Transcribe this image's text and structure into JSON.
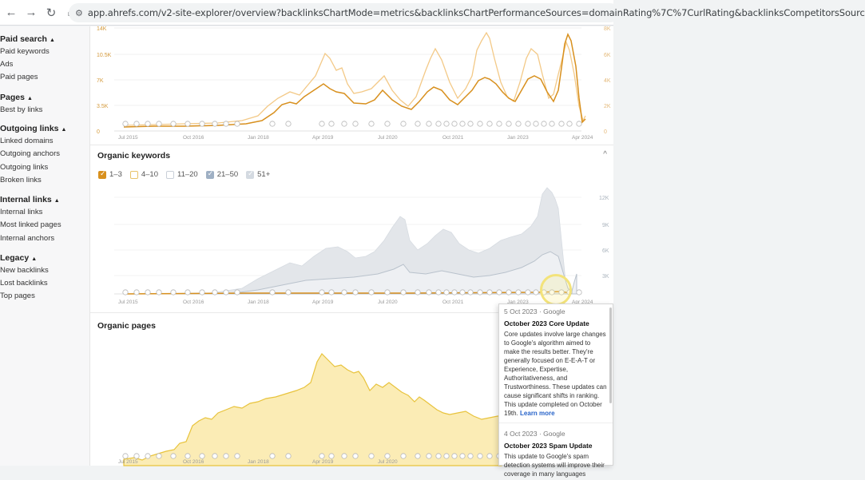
{
  "browser": {
    "url": "app.ahrefs.com/v2-site-explorer/overview?backlinksChartMode=metrics&backlinksChartPerformanceSources=domainRating%7C%7CurlRating&backlinksCompetitorsSourc"
  },
  "sidebar": {
    "groups": [
      {
        "title": "Paid search",
        "items": [
          "Paid keywords",
          "Ads",
          "Paid pages"
        ]
      },
      {
        "title": "Pages",
        "items": [
          "Best by links"
        ]
      },
      {
        "title": "Outgoing links",
        "items": [
          "Linked domains",
          "Outgoing anchors",
          "Outgoing links",
          "Broken links"
        ]
      },
      {
        "title": "Internal links",
        "items": [
          "Internal links",
          "Most linked pages",
          "Internal anchors"
        ]
      },
      {
        "title": "Legacy",
        "items": [
          "New backlinks",
          "Lost backlinks",
          "Top pages"
        ]
      }
    ]
  },
  "colors": {
    "dark_orange": "#d8901e",
    "light_orange": "#f3c987",
    "gray_area": "#e3e6ea",
    "gray_line": "#b9c2cc",
    "yellow_area": "#fbecb5",
    "yellow_line": "#e8c33c"
  },
  "x_ticks": [
    "Jul 2015",
    "Oct 2016",
    "Jan 2018",
    "Apr 2019",
    "Jul 2020",
    "Oct 2021",
    "Jan 2023",
    "Apr 2024"
  ],
  "chart1": {
    "left_ticks": [
      "14K",
      "10.5K",
      "7K",
      "3.5K",
      "0"
    ],
    "right_ticks": [
      "8K",
      "6K",
      "4K",
      "2K",
      "0"
    ]
  },
  "keywords": {
    "title": "Organic keywords",
    "legend": [
      {
        "label": "1–3",
        "checked": true
      },
      {
        "label": "4–10",
        "checked": false
      },
      {
        "label": "11–20",
        "checked": false
      },
      {
        "label": "21–50",
        "checked": true
      },
      {
        "label": "51+",
        "checked": true
      }
    ],
    "right_ticks": [
      "12K",
      "9K",
      "6K",
      "3K"
    ]
  },
  "pages": {
    "title": "Organic pages"
  },
  "tooltip": {
    "entries": [
      {
        "meta": "5 Oct 2023 · Google",
        "title": "October 2023 Core Update",
        "body": "Core updates involve large changes to Google's algorithm aimed to make the results better. They're generally focused on E-E-A-T or Experience, Expertise, Authoritativeness, and Trustworthiness. These updates can cause significant shifts in ranking. This update completed on October 19th.",
        "link": "Learn more"
      },
      {
        "meta": "4 Oct 2023 · Google",
        "title": "October 2023 Spam Update",
        "body": "This update to Google's spam detection systems will improve their coverage in many languages"
      }
    ]
  }
}
